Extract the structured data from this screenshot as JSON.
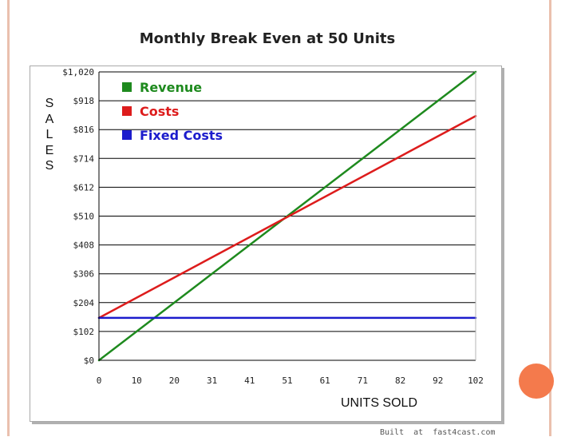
{
  "chart_data": {
    "type": "line",
    "title": "Monthly Break Even at 50 Units",
    "xlabel": "UNITS SOLD",
    "ylabel": "SALES",
    "x_ticks": [
      "0",
      "10",
      "20",
      "31",
      "41",
      "51",
      "61",
      "71",
      "82",
      "92",
      "102"
    ],
    "y_ticks": [
      "$0",
      "$102",
      "$204",
      "$306",
      "$408",
      "$510",
      "$612",
      "$714",
      "$816",
      "$918",
      "$1,020"
    ],
    "xlim": [
      0,
      102
    ],
    "ylim": [
      0,
      1020
    ],
    "grid": "horizontal",
    "legend_position": "top-left",
    "series": [
      {
        "name": "Revenue",
        "color": "#1e8a1e",
        "x": [
          0,
          102
        ],
        "y": [
          0,
          1020
        ]
      },
      {
        "name": "Costs",
        "color": "#dd1c1c",
        "x": [
          0,
          102
        ],
        "y": [
          150,
          864
        ]
      },
      {
        "name": "Fixed Costs",
        "color": "#1c1ccc",
        "x": [
          0,
          102
        ],
        "y": [
          150,
          150
        ]
      }
    ]
  },
  "footer": {
    "credit": "Built  at  fast4cast.com"
  }
}
